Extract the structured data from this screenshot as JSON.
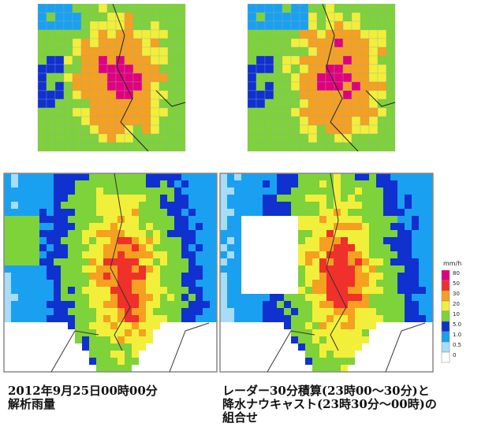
{
  "legend": {
    "unit": "mm/h",
    "levels": [
      {
        "label": "80",
        "color": "#e0007f"
      },
      {
        "label": "50",
        "color": "#f0302a"
      },
      {
        "label": "30",
        "color": "#f5a020"
      },
      {
        "label": "20",
        "color": "#f2ef3a"
      },
      {
        "label": "10",
        "color": "#7ed23a"
      },
      {
        "label": "5.0",
        "color": "#1030d0"
      },
      {
        "label": "1.0",
        "color": "#1aa0f0"
      },
      {
        "label": "0.5",
        "color": "#a8dcf8"
      },
      {
        "label": "0",
        "color": "#ffffff"
      }
    ]
  },
  "captions": [
    {
      "lines": [
        "2012年9月25日00時00分",
        "解析雨量"
      ]
    },
    {
      "lines": [
        "レーダー30分積算(23時00～30分)と",
        "降水ナウキャスト(23時30分～00時)の",
        "組合せ"
      ]
    }
  ]
}
